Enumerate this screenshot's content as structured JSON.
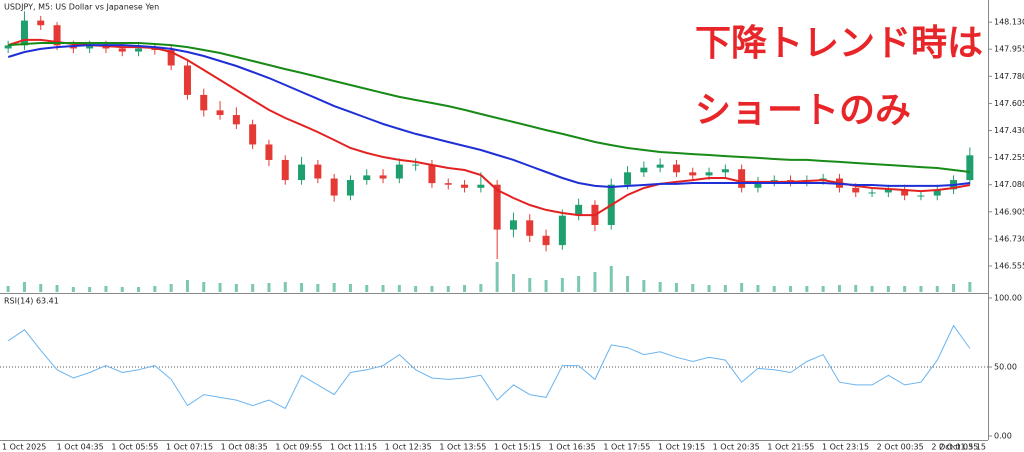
{
  "chart_data": [
    {
      "type": "candlestick",
      "title": "USDJPY, M5:  US Dollar vs Japanese Yen",
      "annotations": [
        "下降トレンド時は",
        "ショートのみ"
      ],
      "annotation_color": "#e8262a",
      "up_color": "#1f9e6e",
      "down_color": "#e53935",
      "open": [
        147.96,
        147.98,
        148.14,
        148.11,
        147.98,
        147.96,
        147.98,
        147.96,
        147.94,
        147.96,
        147.95,
        147.85,
        147.66,
        147.56,
        147.53,
        147.47,
        147.34,
        147.24,
        147.11,
        147.21,
        147.12,
        147.01,
        147.11,
        147.14,
        147.12,
        147.21,
        147.21,
        147.09,
        147.08,
        147.06,
        147.08,
        146.79,
        146.85,
        146.75,
        146.69,
        146.88,
        146.95,
        146.82,
        147.08,
        147.16,
        147.19,
        147.21,
        147.16,
        147.14,
        147.16,
        147.18,
        147.06,
        147.1,
        147.11,
        147.1,
        147.11,
        147.12,
        147.06,
        147.03,
        147.03,
        147.05,
        147.01,
        147.01,
        147.05,
        147.11
      ],
      "high": [
        148.01,
        148.2,
        148.17,
        148.13,
        148.01,
        148.01,
        148.01,
        147.99,
        147.99,
        147.99,
        147.98,
        147.88,
        147.7,
        147.62,
        147.58,
        147.5,
        147.37,
        147.27,
        147.26,
        147.24,
        147.15,
        147.14,
        147.18,
        147.18,
        147.25,
        147.25,
        147.24,
        147.12,
        147.11,
        147.16,
        147.11,
        146.9,
        146.89,
        146.79,
        146.92,
        146.99,
        146.98,
        147.12,
        147.2,
        147.23,
        147.25,
        147.24,
        147.19,
        147.19,
        147.21,
        147.21,
        147.13,
        147.14,
        147.14,
        147.14,
        147.15,
        147.15,
        147.09,
        147.06,
        147.08,
        147.08,
        147.04,
        147.08,
        147.14,
        147.32
      ],
      "low": [
        147.93,
        147.95,
        148.08,
        147.95,
        147.93,
        147.93,
        147.93,
        147.91,
        147.91,
        147.92,
        147.82,
        147.63,
        147.52,
        147.5,
        147.44,
        147.31,
        147.2,
        147.08,
        147.08,
        147.09,
        146.97,
        146.98,
        147.08,
        147.09,
        147.09,
        147.17,
        147.06,
        147.05,
        147.03,
        147.03,
        146.6,
        146.74,
        146.71,
        146.65,
        146.66,
        146.85,
        146.78,
        146.79,
        147.05,
        147.13,
        147.16,
        147.13,
        147.11,
        147.11,
        147.13,
        147.03,
        147.03,
        147.07,
        147.07,
        147.07,
        147.08,
        147.03,
        147.0,
        147.0,
        147.0,
        146.98,
        146.98,
        146.98,
        147.02,
        147.08
      ],
      "close": [
        147.98,
        148.14,
        148.11,
        147.98,
        147.96,
        147.98,
        147.96,
        147.94,
        147.96,
        147.95,
        147.85,
        147.66,
        147.56,
        147.53,
        147.47,
        147.34,
        147.24,
        147.11,
        147.21,
        147.12,
        147.01,
        147.11,
        147.14,
        147.12,
        147.21,
        147.21,
        147.09,
        147.08,
        147.06,
        147.08,
        146.79,
        146.85,
        146.75,
        146.69,
        146.88,
        146.95,
        146.82,
        147.08,
        147.16,
        147.19,
        147.21,
        147.16,
        147.14,
        147.16,
        147.18,
        147.06,
        147.1,
        147.11,
        147.1,
        147.11,
        147.12,
        147.06,
        147.03,
        147.03,
        147.05,
        147.01,
        147.01,
        147.05,
        147.11,
        147.27
      ],
      "lines": [
        {
          "color": "#e32222",
          "values": [
            147.982,
            148.015,
            148.015,
            148.002,
            147.989,
            147.982,
            147.976,
            147.969,
            147.969,
            147.963,
            147.937,
            147.885,
            147.821,
            147.756,
            147.692,
            147.627,
            147.563,
            147.511,
            147.466,
            147.42,
            147.369,
            147.317,
            147.285,
            147.259,
            147.24,
            147.227,
            147.207,
            147.188,
            147.175,
            147.143,
            147.046,
            146.994,
            146.949,
            146.917,
            146.897,
            146.884,
            146.884,
            146.949,
            147.014,
            147.059,
            147.085,
            147.098,
            147.11,
            147.123,
            147.123,
            147.098,
            147.098,
            147.098,
            147.098,
            147.104,
            147.11,
            147.091,
            147.072,
            147.059,
            147.052,
            147.046,
            147.039,
            147.046,
            147.059,
            147.078
          ]
        },
        {
          "color": "#1f2fd6",
          "values": [
            147.905,
            147.937,
            147.957,
            147.969,
            147.976,
            147.982,
            147.982,
            147.982,
            147.976,
            147.969,
            147.957,
            147.937,
            147.911,
            147.879,
            147.847,
            147.808,
            147.769,
            147.724,
            147.679,
            147.634,
            147.588,
            147.55,
            147.511,
            147.472,
            147.44,
            147.408,
            147.382,
            147.356,
            147.33,
            147.304,
            147.272,
            147.24,
            147.201,
            147.162,
            147.123,
            147.091,
            147.072,
            147.065,
            147.072,
            147.078,
            147.085,
            147.085,
            147.091,
            147.091,
            147.091,
            147.091,
            147.091,
            147.091,
            147.091,
            147.091,
            147.091,
            147.085,
            147.078,
            147.078,
            147.072,
            147.072,
            147.072,
            147.072,
            147.078,
            147.091
          ]
        },
        {
          "color": "#178a17",
          "values": [
            147.982,
            147.989,
            147.995,
            147.995,
            147.995,
            147.995,
            147.995,
            147.995,
            147.995,
            147.989,
            147.982,
            147.969,
            147.95,
            147.931,
            147.905,
            147.879,
            147.853,
            147.827,
            147.802,
            147.776,
            147.75,
            147.724,
            147.698,
            147.672,
            147.647,
            147.627,
            147.608,
            147.588,
            147.563,
            147.537,
            147.511,
            147.485,
            147.459,
            147.433,
            147.408,
            147.382,
            147.356,
            147.336,
            147.317,
            147.304,
            147.291,
            147.285,
            147.278,
            147.272,
            147.265,
            147.259,
            147.253,
            147.246,
            147.24,
            147.24,
            147.233,
            147.227,
            147.22,
            147.214,
            147.207,
            147.201,
            147.194,
            147.188,
            147.175,
            147.162
          ]
        }
      ],
      "volume": [
        6,
        10,
        8,
        7,
        5,
        5,
        6,
        5,
        5,
        6,
        8,
        12,
        10,
        9,
        8,
        8,
        9,
        10,
        9,
        8,
        9,
        8,
        7,
        7,
        7,
        6,
        6,
        6,
        7,
        8,
        30,
        18,
        14,
        12,
        14,
        16,
        20,
        26,
        16,
        12,
        10,
        9,
        8,
        7,
        7,
        9,
        7,
        6,
        6,
        6,
        6,
        7,
        7,
        6,
        6,
        6,
        6,
        6,
        8,
        10
      ],
      "volume_color": "#7cc7b4",
      "ylim": [
        146.387,
        148.273
      ],
      "yticks": [
        {
          "value": 146.555,
          "label": "146.555"
        },
        {
          "value": 146.73,
          "label": "146.730"
        },
        {
          "value": 146.905,
          "label": "146.905"
        },
        {
          "value": 147.08,
          "label": "147.080"
        },
        {
          "value": 147.255,
          "label": "147.255"
        },
        {
          "value": 147.43,
          "label": "147.430"
        },
        {
          "value": 147.605,
          "label": "147.605"
        },
        {
          "value": 147.78,
          "label": "147.780"
        },
        {
          "value": 147.955,
          "label": "147.955"
        },
        {
          "value": 148.13,
          "label": "148.130"
        }
      ]
    },
    {
      "type": "line",
      "title": "RSI(14) 63.41",
      "color": "#6cb4ee",
      "values": [
        69,
        77,
        62,
        48,
        42,
        46,
        51,
        46,
        48,
        51,
        41,
        22,
        30,
        28,
        26,
        22,
        26,
        20,
        44,
        37,
        30,
        46,
        48,
        51,
        59,
        48,
        42,
        41,
        42,
        44,
        26,
        37,
        30,
        28,
        51,
        51,
        41,
        66,
        64,
        59,
        61,
        57,
        54,
        57,
        55,
        39,
        49,
        48,
        46,
        54,
        59,
        39,
        37,
        37,
        44,
        37,
        39,
        55,
        80,
        63.41
      ],
      "ylim": [
        0,
        100
      ],
      "yticks": [
        {
          "value": 0,
          "label": "0.00"
        },
        {
          "value": 50,
          "label": "50.00"
        },
        {
          "value": 100,
          "label": "100.00"
        }
      ],
      "levels": [
        50
      ],
      "time_labels": [
        "1 Oct 2025",
        "1 Oct 04:35",
        "1 Oct 05:55",
        "1 Oct 07:15",
        "1 Oct 08:35",
        "1 Oct 09:55",
        "1 Oct 11:15",
        "1 Oct 12:35",
        "1 Oct 13:55",
        "1 Oct 15:15",
        "1 Oct 16:35",
        "1 Oct 17:55",
        "1 Oct 19:15",
        "1 Oct 20:35",
        "1 Oct 21:55",
        "1 Oct 23:15",
        "2 Oct 00:35",
        "2 Oct 01:55",
        "2 Oct 03:15"
      ]
    }
  ]
}
